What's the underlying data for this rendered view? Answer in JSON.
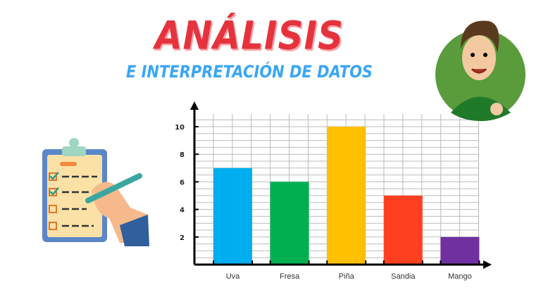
{
  "header": {
    "title": "ANÁLISIS",
    "subtitle": "E INTERPRETACIÓN DE DATOS"
  },
  "illustrations": {
    "left": "clipboard-checklist-with-hand-pen",
    "right": "cartoon-man-avatar-green-circle"
  },
  "chart_data": {
    "type": "bar",
    "categories": [
      "Uva",
      "Fresa",
      "Piña",
      "Sandia",
      "Mango"
    ],
    "values": [
      7,
      6,
      10,
      5,
      2
    ],
    "colors": [
      "#00aeef",
      "#00b050",
      "#ffc000",
      "#ff4020",
      "#7030a0"
    ],
    "yticks": [
      "2",
      "4",
      "6",
      "8",
      "10"
    ],
    "ylim": [
      0,
      11
    ],
    "grid": true,
    "title": "",
    "xlabel": "",
    "ylabel": ""
  }
}
